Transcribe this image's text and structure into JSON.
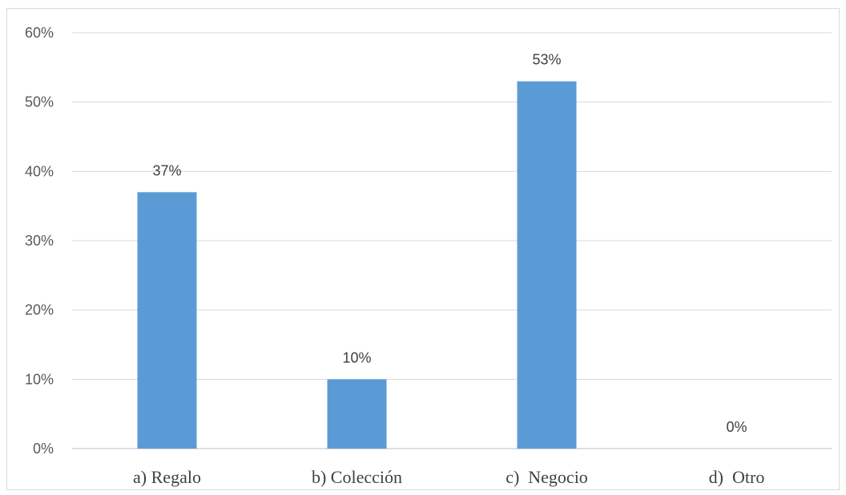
{
  "chart_data": {
    "type": "bar",
    "categories": [
      "a) Regalo",
      "b) Colección",
      "c)  Negocio",
      "d)  Otro"
    ],
    "values": [
      37,
      10,
      53,
      0
    ],
    "value_labels": [
      "37%",
      "10%",
      "53%",
      "0%"
    ],
    "title": "",
    "xlabel": "",
    "ylabel": "",
    "ylim": [
      0,
      60
    ],
    "yticks": [
      0,
      10,
      20,
      30,
      40,
      50,
      60
    ],
    "ytick_labels": [
      "0%",
      "10%",
      "20%",
      "30%",
      "40%",
      "50%",
      "60%"
    ],
    "grid": true,
    "legend": "none",
    "bar_color": "#5b9bd5"
  }
}
